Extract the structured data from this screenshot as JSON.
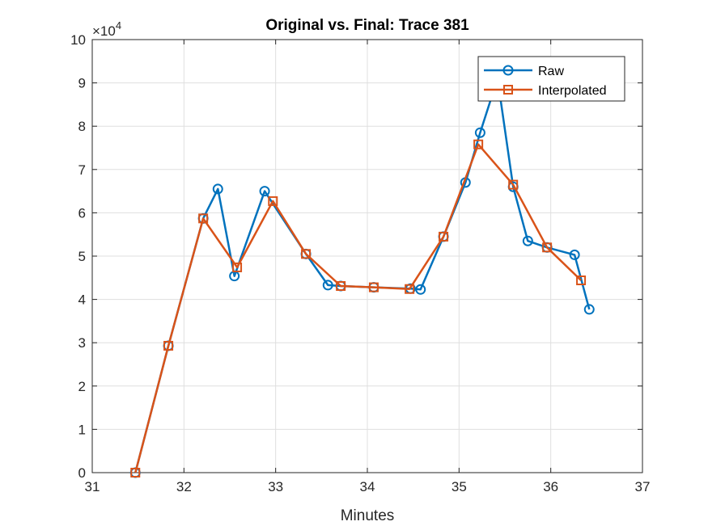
{
  "chart_data": {
    "type": "line",
    "title": "Original vs. Final: Trace 381",
    "xlabel": "Minutes",
    "ylabel": "",
    "xlim": [
      31,
      37
    ],
    "ylim": [
      0,
      100000
    ],
    "x_ticks": [
      "31",
      "32",
      "33",
      "34",
      "35",
      "36",
      "37"
    ],
    "y_ticks": [
      "0",
      "1",
      "2",
      "3",
      "4",
      "5",
      "6",
      "7",
      "8",
      "9",
      "10"
    ],
    "y_exponent_label": "×10",
    "y_exponent_power": "4",
    "grid": true,
    "legend_position": "top-right",
    "series": [
      {
        "name": "Raw",
        "color": "#0072BD",
        "marker": "circle",
        "x": [
          31.47,
          31.83,
          32.21,
          32.37,
          32.55,
          32.88,
          33.33,
          33.57,
          33.71,
          34.07,
          34.47,
          34.58,
          34.83,
          35.07,
          35.23,
          35.42,
          35.59,
          35.75,
          35.96,
          36.26,
          36.42
        ],
        "y": [
          0,
          29300,
          58700,
          65500,
          45400,
          65000,
          50500,
          43300,
          43100,
          42800,
          42500,
          42300,
          54500,
          67000,
          78500,
          91000,
          66000,
          53500,
          52000,
          50300,
          37700
        ]
      },
      {
        "name": "Interpolated",
        "color": "#D95319",
        "marker": "square",
        "x": [
          31.47,
          31.83,
          32.21,
          32.58,
          32.97,
          33.33,
          33.71,
          34.07,
          34.46,
          34.83,
          35.21,
          35.59,
          35.96,
          36.33
        ],
        "y": [
          0,
          29300,
          58700,
          47400,
          62700,
          50500,
          43100,
          42800,
          42400,
          54500,
          75800,
          66500,
          52000,
          44400
        ]
      }
    ]
  }
}
